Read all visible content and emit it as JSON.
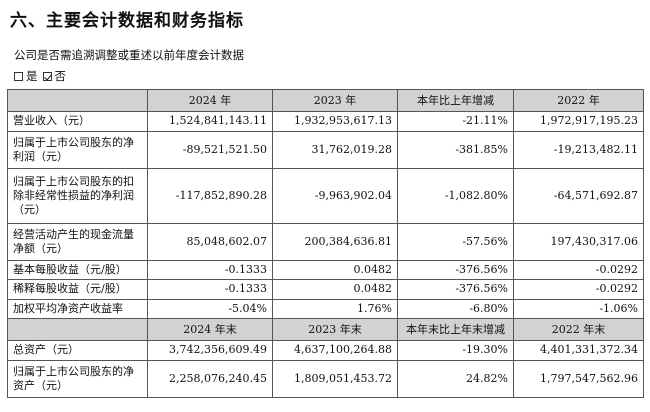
{
  "section_title": "六、主要会计数据和财务指标",
  "question": "公司是否需追溯调整或重述以前年度会计数据",
  "choices": [
    {
      "label": "是",
      "checked": false
    },
    {
      "label": "否",
      "checked": true
    }
  ],
  "table": {
    "header1": [
      "",
      "2024 年",
      "2023 年",
      "本年比上年增减",
      "2022 年"
    ],
    "rows1": [
      {
        "label": "营业收入（元）",
        "v2024": "1,524,841,143.11",
        "v2023": "1,932,953,617.13",
        "change": "-21.11%",
        "v2022": "1,972,917,195.23"
      },
      {
        "label": "归属于上市公司股东的净利润（元）",
        "v2024": "-89,521,521.50",
        "v2023": "31,762,019.28",
        "change": "-381.85%",
        "v2022": "-19,213,482.11"
      },
      {
        "label": "归属于上市公司股东的扣除非经常性损益的净利润（元）",
        "v2024": "-117,852,890.28",
        "v2023": "-9,963,902.04",
        "change": "-1,082.80%",
        "v2022": "-64,571,692.87"
      },
      {
        "label": "经营活动产生的现金流量净额（元）",
        "v2024": "85,048,602.07",
        "v2023": "200,384,636.81",
        "change": "-57.56%",
        "v2022": "197,430,317.06"
      },
      {
        "label": "基本每股收益（元/股）",
        "v2024": "-0.1333",
        "v2023": "0.0482",
        "change": "-376.56%",
        "v2022": "-0.0292"
      },
      {
        "label": "稀释每股收益（元/股）",
        "v2024": "-0.1333",
        "v2023": "0.0482",
        "change": "-376.56%",
        "v2022": "-0.0292"
      },
      {
        "label": "加权平均净资产收益率",
        "v2024": "-5.04%",
        "v2023": "1.76%",
        "change": "-6.80%",
        "v2022": "-1.06%"
      }
    ],
    "header2": [
      "",
      "2024 年末",
      "2023 年末",
      "本年末比上年末增减",
      "2022 年末"
    ],
    "rows2": [
      {
        "label": "总资产（元）",
        "v2024": "3,742,356,609.49",
        "v2023": "4,637,100,264.88",
        "change": "-19.30%",
        "v2022": "4,401,331,372.34"
      },
      {
        "label": "归属于上市公司股东的净资产（元）",
        "v2024": "2,258,076,240.45",
        "v2023": "1,809,051,453.72",
        "change": "24.82%",
        "v2022": "1,797,547,562.96"
      }
    ]
  }
}
